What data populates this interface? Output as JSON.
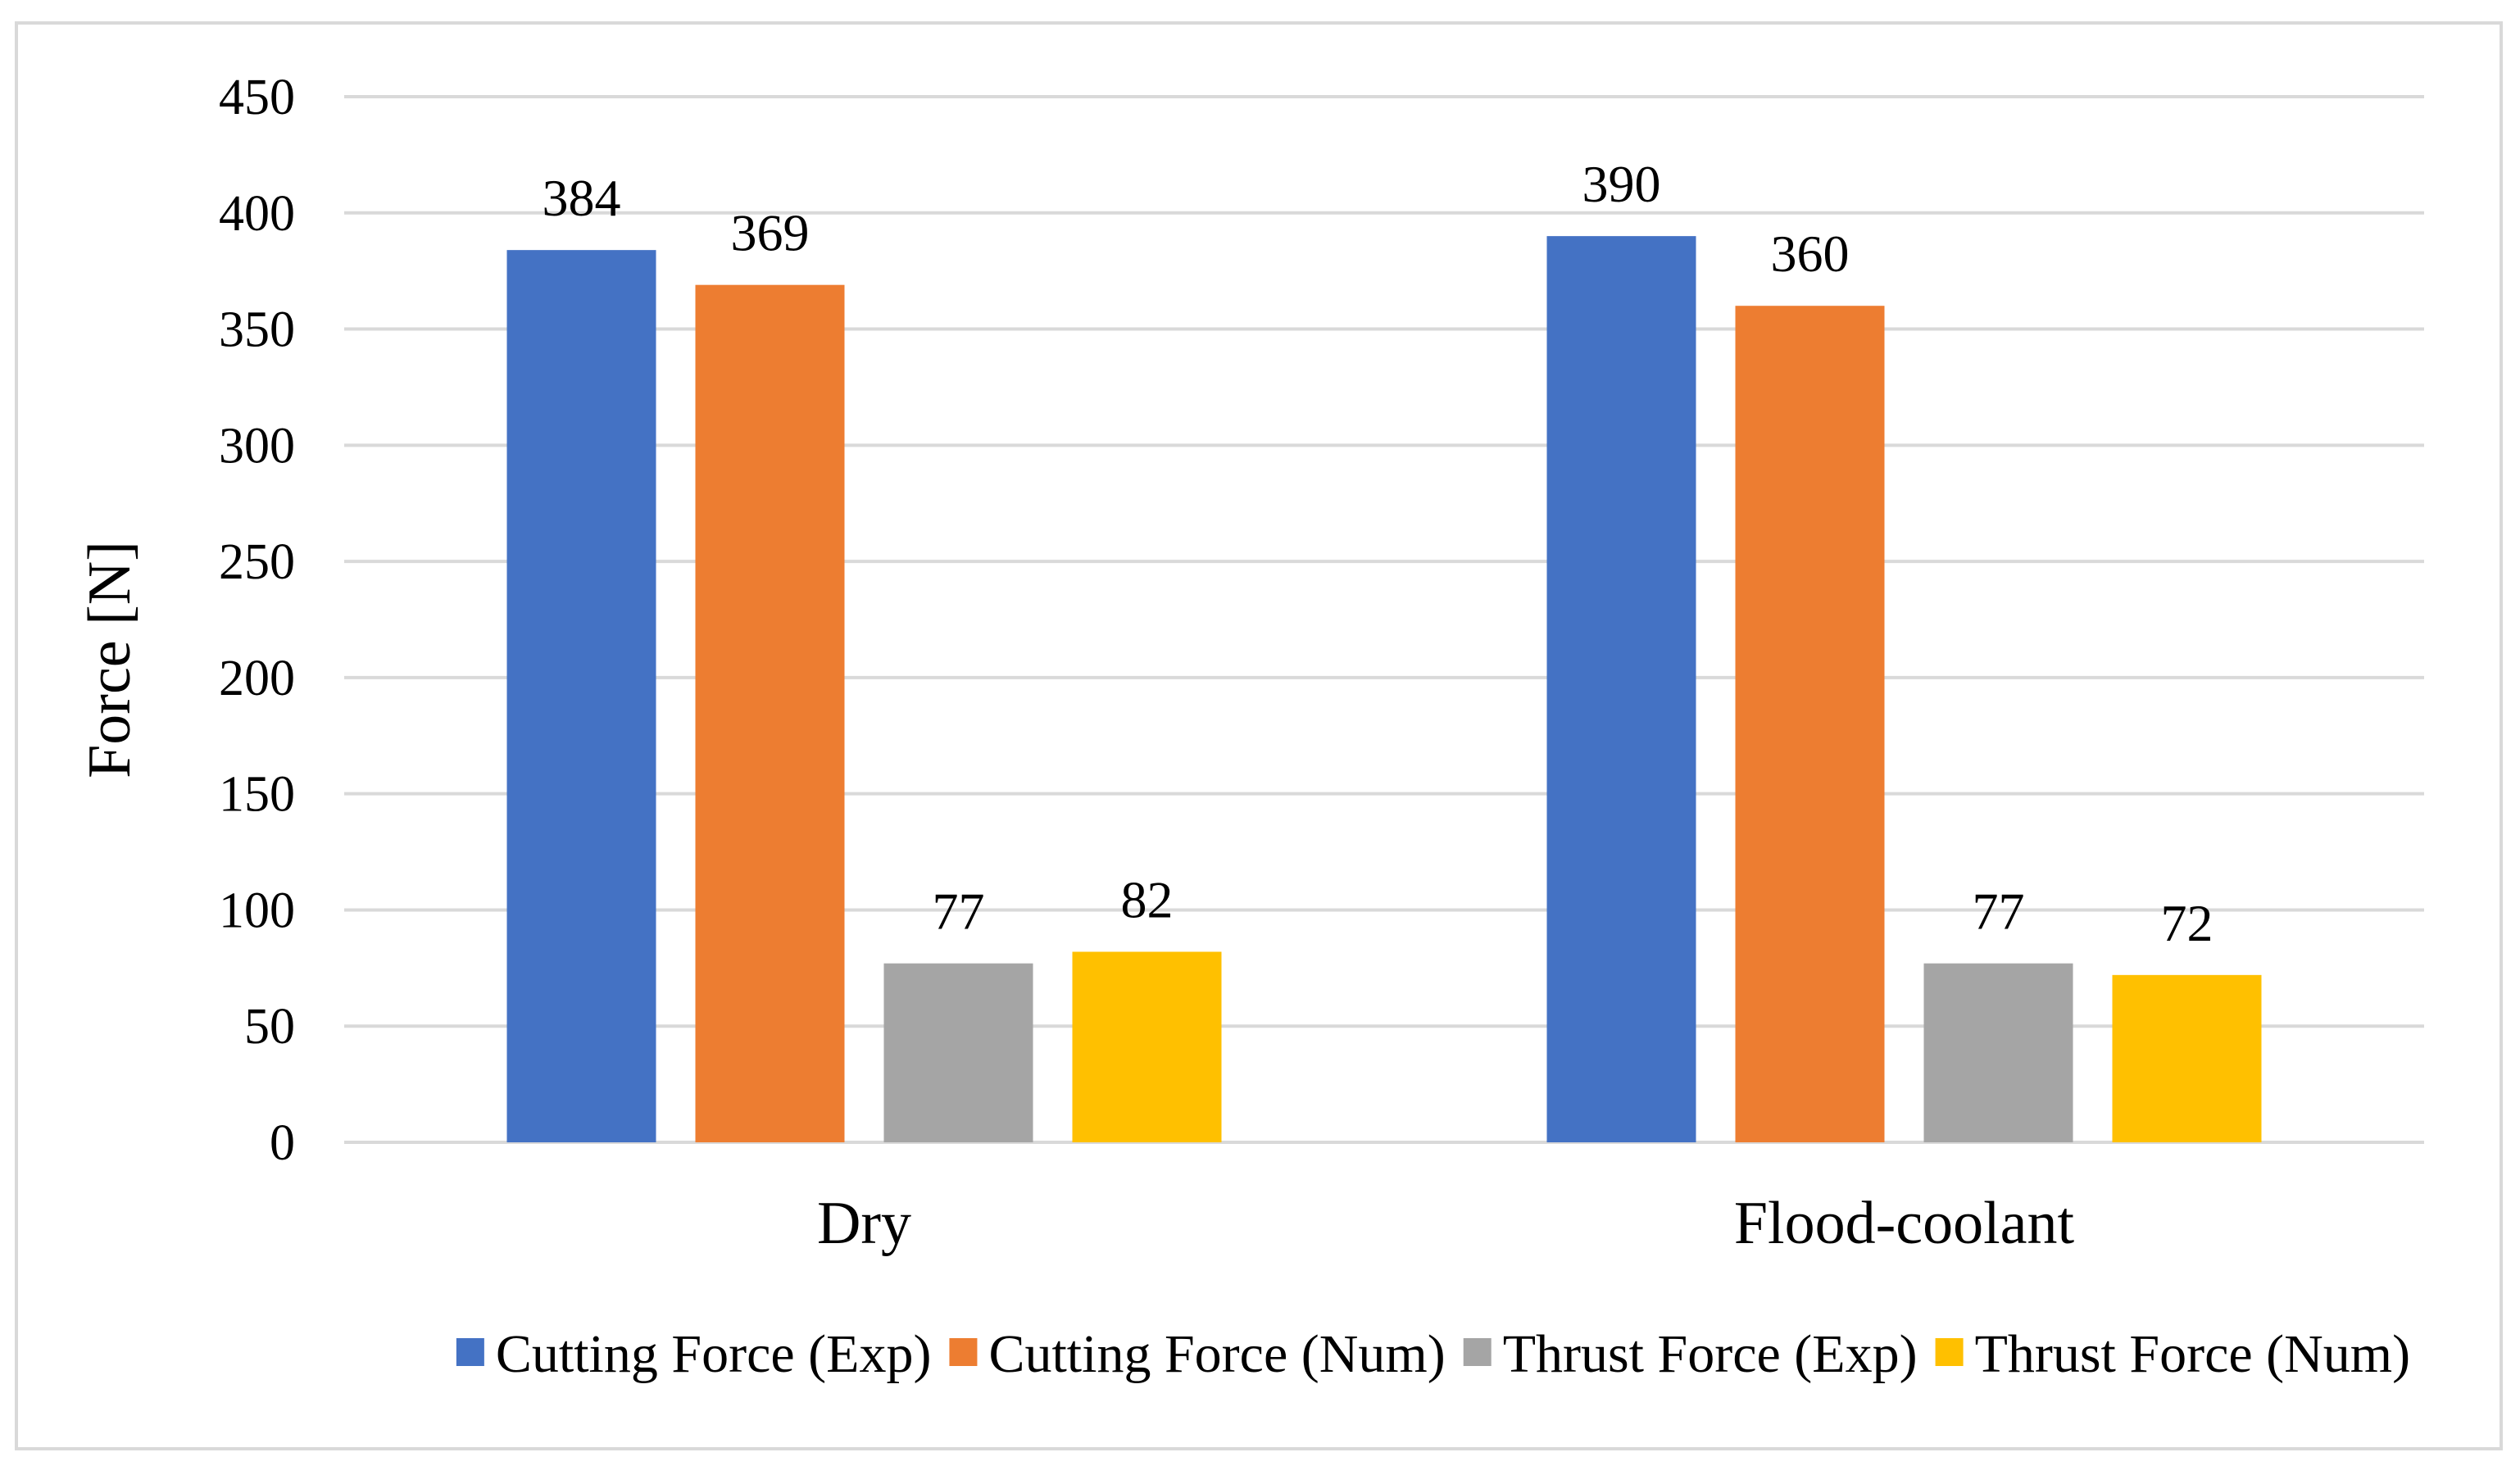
{
  "chart_data": {
    "type": "bar",
    "title": "",
    "xlabel": "",
    "ylabel": "Force [N]",
    "ylim": [
      0,
      450
    ],
    "yticks": [
      0,
      50,
      100,
      150,
      200,
      250,
      300,
      350,
      400,
      450
    ],
    "grid": true,
    "legend_position": "bottom",
    "categories": [
      "Dry",
      "Flood-coolant"
    ],
    "series": [
      {
        "name": "Cutting Force (Exp)",
        "color": "#4472c4",
        "values": [
          384,
          390
        ]
      },
      {
        "name": "Cutting Force (Num)",
        "color": "#ed7d31",
        "values": [
          369,
          360
        ]
      },
      {
        "name": "Thrust Force (Exp)",
        "color": "#a5a5a5",
        "values": [
          77,
          77
        ]
      },
      {
        "name": "Thrust Force (Num)",
        "color": "#ffc000",
        "values": [
          82,
          72
        ]
      }
    ]
  }
}
